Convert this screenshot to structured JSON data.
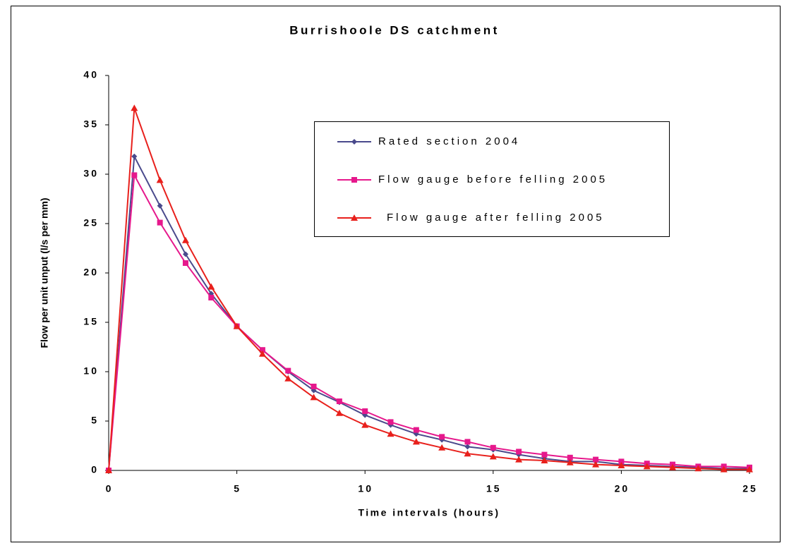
{
  "chart_data": {
    "type": "line",
    "title": "Burrishoole DS catchment",
    "x_label": "Time intervals (hours)",
    "y_label": "Flow per unit unput (l/s per mm)",
    "x": [
      0,
      1,
      2,
      3,
      4,
      5,
      6,
      7,
      8,
      9,
      10,
      11,
      12,
      13,
      14,
      15,
      16,
      17,
      18,
      19,
      20,
      21,
      22,
      23,
      24,
      25
    ],
    "series": [
      {
        "name": "Rated section 2004",
        "color": "#4a4a8c",
        "marker": "diamond",
        "values": [
          0,
          31.8,
          26.8,
          21.9,
          17.9,
          14.6,
          12.2,
          10.0,
          8.1,
          6.9,
          5.6,
          4.6,
          3.7,
          3.1,
          2.4,
          2.1,
          1.6,
          1.2,
          0.9,
          0.9,
          0.6,
          0.5,
          0.4,
          0.3,
          0.2,
          0.2
        ]
      },
      {
        "name": "Flow gauge before felling 2005",
        "color": "#e6188c",
        "marker": "square",
        "values": [
          0,
          29.9,
          25.1,
          21.0,
          17.5,
          14.6,
          12.2,
          10.1,
          8.5,
          7.0,
          6.0,
          4.9,
          4.1,
          3.4,
          2.9,
          2.3,
          1.9,
          1.6,
          1.3,
          1.1,
          0.9,
          0.7,
          0.6,
          0.4,
          0.4,
          0.3
        ]
      },
      {
        "name": "Flow gauge after felling 2005",
        "color": "#e8201c",
        "marker": "triangle",
        "values": [
          0,
          36.7,
          29.4,
          23.3,
          18.6,
          14.6,
          11.8,
          9.3,
          7.4,
          5.8,
          4.6,
          3.7,
          2.9,
          2.3,
          1.7,
          1.4,
          1.1,
          1.0,
          0.8,
          0.6,
          0.5,
          0.4,
          0.3,
          0.2,
          0.1,
          0.1
        ]
      }
    ],
    "xlim": [
      0,
      25
    ],
    "xticks": [
      0,
      5,
      10,
      15,
      20,
      25
    ],
    "ylim": [
      0,
      40
    ],
    "yticks": [
      0,
      5,
      10,
      15,
      20,
      25,
      30,
      35,
      40
    ],
    "grid": false
  }
}
